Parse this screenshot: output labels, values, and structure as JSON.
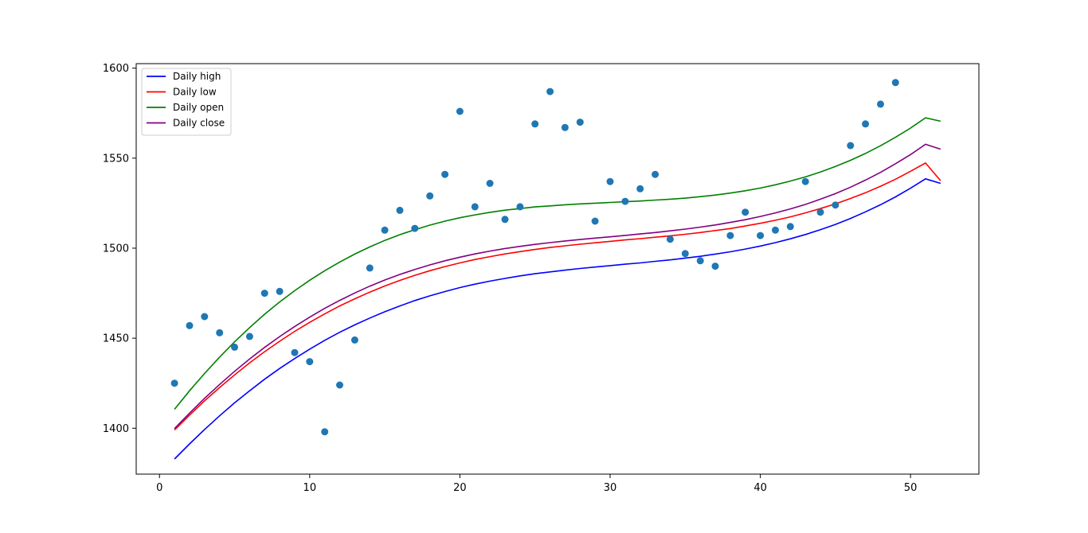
{
  "chart_data": {
    "type": "line",
    "title": "",
    "xlabel": "",
    "ylabel": "",
    "xlim": [
      -1.55,
      54.55
    ],
    "ylim": [
      1374.5,
      1602.5
    ],
    "xticks": [
      0,
      10,
      20,
      30,
      40,
      50
    ],
    "yticks": [
      1400,
      1450,
      1500,
      1550,
      1600
    ],
    "grid": false,
    "legend_position": "top-left",
    "series": [
      {
        "name": "Daily high",
        "color": "#0000ff",
        "x": [
          1,
          2,
          3,
          4,
          5,
          6,
          7,
          8,
          9,
          10,
          11,
          12,
          13,
          14,
          15,
          16,
          17,
          18,
          19,
          20,
          21,
          22,
          23,
          24,
          25,
          26,
          27,
          28,
          29,
          30,
          31,
          32,
          33,
          34,
          35,
          36,
          37,
          38,
          39,
          40,
          41,
          42,
          43,
          44,
          45,
          46,
          47,
          48,
          49,
          50,
          51,
          52
        ],
        "y": [
          1382.9,
          1391.3,
          1399.3,
          1406.9,
          1414.1,
          1420.8,
          1427.2,
          1433.2,
          1438.7,
          1443.9,
          1448.8,
          1453.3,
          1457.4,
          1461.2,
          1464.7,
          1467.9,
          1470.9,
          1473.5,
          1475.9,
          1478.1,
          1480.0,
          1481.7,
          1483.2,
          1484.6,
          1485.8,
          1486.8,
          1487.8,
          1488.7,
          1489.5,
          1490.3,
          1491.1,
          1491.8,
          1492.7,
          1493.5,
          1494.5,
          1495.5,
          1496.7,
          1498.0,
          1499.5,
          1501.2,
          1503.1,
          1505.2,
          1507.6,
          1510.3,
          1513.2,
          1516.5,
          1520.2,
          1524.1,
          1528.5,
          1533.3,
          1538.5,
          1536.0
        ]
      },
      {
        "name": "Daily low",
        "color": "#ff0000",
        "x": [
          1,
          2,
          3,
          4,
          5,
          6,
          7,
          8,
          9,
          10,
          11,
          12,
          13,
          14,
          15,
          16,
          17,
          18,
          19,
          20,
          21,
          22,
          23,
          24,
          25,
          26,
          27,
          28,
          29,
          30,
          31,
          32,
          33,
          34,
          35,
          36,
          37,
          38,
          39,
          40,
          41,
          42,
          43,
          44,
          45,
          46,
          47,
          48,
          49,
          50,
          51,
          52
        ],
        "y": [
          1399.0,
          1407.3,
          1415.2,
          1422.6,
          1429.6,
          1436.3,
          1442.5,
          1448.3,
          1453.8,
          1458.8,
          1463.5,
          1467.9,
          1471.9,
          1475.6,
          1479.0,
          1482.1,
          1484.9,
          1487.5,
          1489.8,
          1491.8,
          1493.7,
          1495.3,
          1496.8,
          1498.1,
          1499.3,
          1500.4,
          1501.3,
          1502.2,
          1503.0,
          1503.8,
          1504.6,
          1505.3,
          1506.1,
          1506.9,
          1507.7,
          1508.7,
          1509.8,
          1510.9,
          1512.3,
          1513.8,
          1515.5,
          1517.4,
          1519.6,
          1522.0,
          1524.6,
          1527.6,
          1530.8,
          1534.4,
          1538.3,
          1542.7,
          1547.3,
          1537.5
        ]
      },
      {
        "name": "Daily open",
        "color": "#008000",
        "x": [
          1,
          2,
          3,
          4,
          5,
          6,
          7,
          8,
          9,
          10,
          11,
          12,
          13,
          14,
          15,
          16,
          17,
          18,
          19,
          20,
          21,
          22,
          23,
          24,
          25,
          26,
          27,
          28,
          29,
          30,
          31,
          32,
          33,
          34,
          35,
          36,
          37,
          38,
          39,
          40,
          41,
          42,
          43,
          44,
          45,
          46,
          47,
          48,
          49,
          50,
          51,
          52
        ],
        "y": [
          1410.5,
          1420.8,
          1430.4,
          1439.5,
          1448.0,
          1455.9,
          1463.3,
          1470.1,
          1476.4,
          1482.2,
          1487.5,
          1492.3,
          1496.7,
          1500.7,
          1504.3,
          1507.5,
          1510.3,
          1512.8,
          1515.0,
          1516.9,
          1518.5,
          1519.9,
          1521.1,
          1522.0,
          1522.9,
          1523.5,
          1524.1,
          1524.6,
          1525.0,
          1525.4,
          1525.8,
          1526.2,
          1526.7,
          1527.2,
          1527.8,
          1528.6,
          1529.5,
          1530.6,
          1531.9,
          1533.4,
          1535.2,
          1537.3,
          1539.6,
          1542.3,
          1545.4,
          1548.8,
          1552.6,
          1556.9,
          1561.6,
          1566.7,
          1572.4,
          1570.5
        ]
      },
      {
        "name": "Daily close",
        "color": "#800080",
        "x": [
          1,
          2,
          3,
          4,
          5,
          6,
          7,
          8,
          9,
          10,
          11,
          12,
          13,
          14,
          15,
          16,
          17,
          18,
          19,
          20,
          21,
          22,
          23,
          24,
          25,
          26,
          27,
          28,
          29,
          30,
          31,
          32,
          33,
          34,
          35,
          36,
          37,
          38,
          39,
          40,
          41,
          42,
          43,
          44,
          45,
          46,
          47,
          48,
          49,
          50,
          51,
          52
        ],
        "y": [
          1399.8,
          1408.4,
          1416.6,
          1424.3,
          1431.6,
          1438.5,
          1444.9,
          1450.9,
          1456.5,
          1461.7,
          1466.6,
          1471.0,
          1475.1,
          1478.9,
          1482.3,
          1485.4,
          1488.2,
          1490.7,
          1493.0,
          1495.0,
          1496.8,
          1498.4,
          1499.8,
          1501.0,
          1502.1,
          1503.1,
          1504.0,
          1504.8,
          1505.6,
          1506.3,
          1507.1,
          1507.9,
          1508.7,
          1509.6,
          1510.6,
          1511.7,
          1512.9,
          1514.3,
          1515.8,
          1517.6,
          1519.6,
          1521.8,
          1524.3,
          1527.2,
          1530.3,
          1533.9,
          1537.8,
          1542.1,
          1546.9,
          1552.0,
          1557.7,
          1555.0
        ]
      }
    ],
    "scatter": {
      "color": "#1f77b4",
      "x": [
        1,
        2,
        3,
        4,
        5,
        6,
        7,
        8,
        9,
        10,
        11,
        12,
        13,
        14,
        15,
        16,
        17,
        18,
        19,
        20,
        21,
        22,
        23,
        24,
        25,
        26,
        27,
        28,
        29,
        30,
        31,
        32,
        33,
        34,
        35,
        36,
        37,
        38,
        39,
        40,
        41,
        42,
        43,
        44,
        45,
        46,
        47,
        48,
        49
      ],
      "y": [
        1425,
        1457,
        1462,
        1453,
        1445,
        1451,
        1475,
        1476,
        1442,
        1437,
        1398,
        1424,
        1449,
        1489,
        1510,
        1521,
        1511,
        1529,
        1541,
        1576,
        1523,
        1536,
        1516,
        1523,
        1569,
        1587,
        1567,
        1570,
        1515,
        1537,
        1526,
        1533,
        1541,
        1505,
        1497,
        1493,
        1490,
        1507,
        1520,
        1507,
        1510,
        1512,
        1537,
        1520,
        1524,
        1557,
        1569,
        1580,
        1592
      ]
    }
  }
}
